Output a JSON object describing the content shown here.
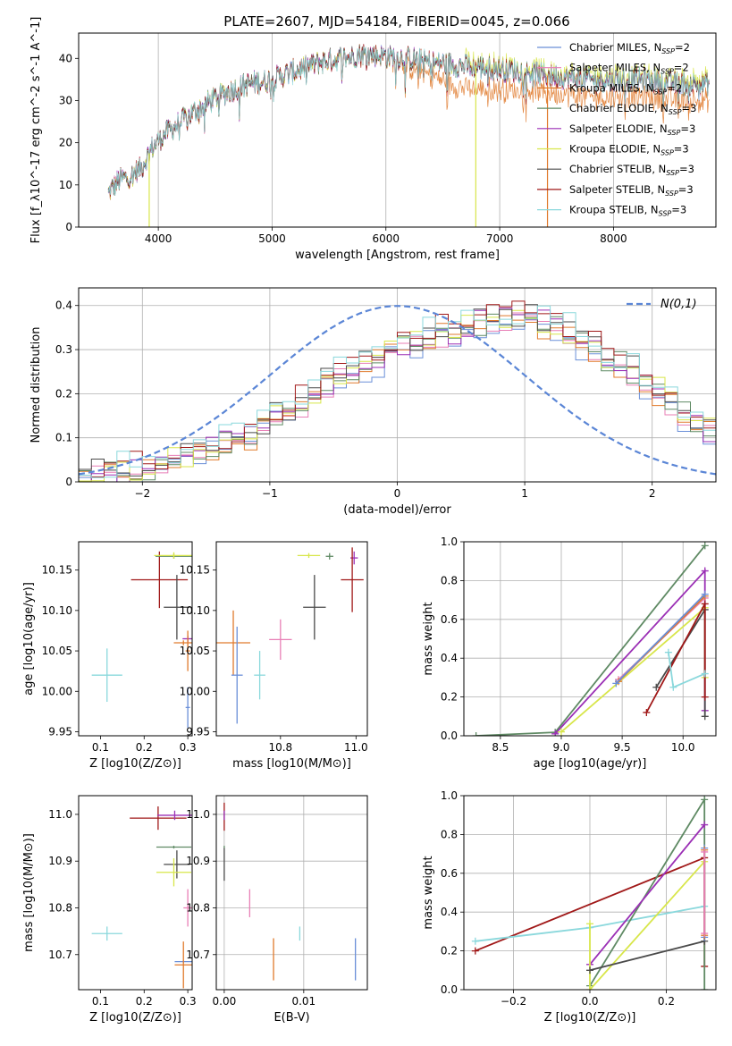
{
  "figure": {
    "title": "PLATE=2607, MJD=54184, FIBERID=0045, z=0.066"
  },
  "colors": {
    "Chabrier MILES": "#6a8fd8",
    "Salpeter MILES": "#e87fb6",
    "Kroupa MILES": "#e07a2c",
    "Chabrier ELODIE": "#5f8a64",
    "Salpeter ELODIE": "#9b2fb5",
    "Kroupa ELODIE": "#d8e64a",
    "Chabrier STELIB": "#4a4a4a",
    "Salpeter STELIB": "#a01818",
    "Kroupa STELIB": "#8ad8dc"
  },
  "chart_data": [
    {
      "id": "spectrum",
      "type": "line",
      "title": "PLATE=2607, MJD=54184, FIBERID=0045, z=0.066",
      "xlabel": "wavelength [Angstrom, rest frame]",
      "ylabel": "Flux [f_λ10^-17 erg cm^-2 s^-1 A^-1]",
      "xlim": [
        3300,
        8900
      ],
      "ylim": [
        0,
        46
      ],
      "xticks": [
        4000,
        5000,
        6000,
        7000,
        8000
      ],
      "yticks": [
        0,
        10,
        20,
        30,
        40
      ],
      "grid": "x-only",
      "legend_position": "right",
      "legend": [
        {
          "label": "Chabrier MILES, N_SSP=2"
        },
        {
          "label": "Salpeter MILES, N_SSP=2"
        },
        {
          "label": "Kroupa MILES, N_SSP=2"
        },
        {
          "label": "Chabrier ELODIE, N_SSP=3"
        },
        {
          "label": "Salpeter ELODIE, N_SSP=3"
        },
        {
          "label": "Kroupa ELODIE, N_SSP=3"
        },
        {
          "label": "Chabrier STELIB, N_SSP=3"
        },
        {
          "label": "Salpeter STELIB, N_SSP=3"
        },
        {
          "label": "Kroupa STELIB, N_SSP=3"
        }
      ],
      "continuum": [
        [
          3560,
          8
        ],
        [
          3650,
          11
        ],
        [
          3750,
          12
        ],
        [
          3850,
          14
        ],
        [
          3950,
          19
        ],
        [
          4050,
          22
        ],
        [
          4200,
          25
        ],
        [
          4400,
          29
        ],
        [
          4600,
          32
        ],
        [
          4800,
          34
        ],
        [
          5000,
          35
        ],
        [
          5200,
          37
        ],
        [
          5400,
          39
        ],
        [
          5600,
          40
        ],
        [
          5800,
          41
        ],
        [
          6000,
          40.5
        ],
        [
          6200,
          40
        ],
        [
          6400,
          39
        ],
        [
          6600,
          38.5
        ],
        [
          6800,
          38
        ],
        [
          7000,
          37.5
        ],
        [
          7200,
          37
        ],
        [
          7400,
          36
        ],
        [
          7600,
          35.5
        ],
        [
          7800,
          35
        ],
        [
          8000,
          35
        ],
        [
          8200,
          35
        ],
        [
          8400,
          34.5
        ],
        [
          8600,
          34
        ],
        [
          8800,
          34
        ]
      ],
      "kroupa_miles_offset": [
        [
          6000,
          0
        ],
        [
          6200,
          -2
        ],
        [
          6400,
          -3
        ],
        [
          6600,
          -5
        ],
        [
          7000,
          -5
        ],
        [
          7400,
          -4
        ]
      ]
    },
    {
      "id": "residuals",
      "type": "line",
      "xlabel": "(data-model)/error",
      "ylabel": "Normed distribution",
      "xlim": [
        -2.5,
        2.5
      ],
      "ylim": [
        0,
        0.44
      ],
      "xticks": [
        -2,
        -1,
        0,
        1,
        2
      ],
      "yticks": [
        0.0,
        0.1,
        0.2,
        0.3,
        0.4
      ],
      "grid": "both",
      "legend_position": "top-right",
      "gaussian_label": "N(0,1)",
      "bin_width": 0.1,
      "hist_centers": [
        -2.45,
        -2.35,
        -2.25,
        -2.15,
        -2.05,
        -1.95,
        -1.85,
        -1.75,
        -1.65,
        -1.55,
        -1.45,
        -1.35,
        -1.25,
        -1.15,
        -1.05,
        -0.95,
        -0.85,
        -0.75,
        -0.65,
        -0.55,
        -0.45,
        -0.35,
        -0.25,
        -0.15,
        -0.05,
        0.05,
        0.15,
        0.25,
        0.35,
        0.45,
        0.55,
        0.65,
        0.75,
        0.85,
        0.95,
        1.05,
        1.15,
        1.25,
        1.35,
        1.45,
        1.55,
        1.65,
        1.75,
        1.85,
        1.95,
        2.05,
        2.15,
        2.25,
        2.35,
        2.45
      ],
      "hist_envelope": [
        0.015,
        0.02,
        0.02,
        0.025,
        0.03,
        0.035,
        0.045,
        0.05,
        0.06,
        0.07,
        0.08,
        0.09,
        0.1,
        0.11,
        0.13,
        0.15,
        0.16,
        0.18,
        0.2,
        0.22,
        0.24,
        0.26,
        0.27,
        0.28,
        0.3,
        0.31,
        0.32,
        0.33,
        0.34,
        0.34,
        0.35,
        0.36,
        0.37,
        0.37,
        0.37,
        0.37,
        0.36,
        0.35,
        0.34,
        0.32,
        0.3,
        0.28,
        0.27,
        0.25,
        0.23,
        0.21,
        0.18,
        0.16,
        0.14,
        0.12
      ]
    },
    {
      "id": "age_vs_Z",
      "type": "scatter",
      "xlabel": "Z [log10(Z/Z⊙)]",
      "ylabel": "age  [log10(age/yr)]",
      "xlim": [
        0.05,
        0.31
      ],
      "ylim": [
        9.945,
        10.185
      ],
      "xticks": [
        0.1,
        0.2,
        0.3
      ],
      "yticks": [
        9.95,
        10.0,
        10.05,
        10.1,
        10.15
      ],
      "grid": "none",
      "points": [
        {
          "series": "Kroupa STELIB",
          "x": 0.115,
          "y": 10.02,
          "ex": 0.035,
          "ey": 0.033
        },
        {
          "series": "Salpeter STELIB",
          "x": 0.235,
          "y": 10.138,
          "ex": 0.065,
          "ey": 0.035
        },
        {
          "series": "Chabrier STELIB",
          "x": 0.275,
          "y": 10.104,
          "ex": 0.03,
          "ey": 0.04
        },
        {
          "series": "Chabrier ELODIE",
          "x": 0.268,
          "y": 10.167,
          "ex": 0.042,
          "ey": 0.003
        },
        {
          "series": "Kroupa ELODIE",
          "x": 0.268,
          "y": 10.168,
          "ex": 0.045,
          "ey": 0.004
        },
        {
          "series": "Salpeter ELODIE",
          "x": 0.3,
          "y": 10.065,
          "ex": 0.012,
          "ey": 0.004
        },
        {
          "series": "Kroupa MILES",
          "x": 0.29,
          "y": 10.06,
          "ex": 0.022,
          "ey": 0.003
        },
        {
          "series": "Chabrier MILES",
          "x": 0.3,
          "y": 9.98,
          "ex": 0.005,
          "ey": 0.025
        },
        {
          "series": "Kroupa MILES",
          "x": 0.3,
          "y": 10.05,
          "ex": 0.005,
          "ey": 0.025
        }
      ]
    },
    {
      "id": "age_vs_mass",
      "type": "scatter",
      "xlabel": "mass [log10(M/M⊙)]",
      "ylabel": "",
      "xlim": [
        10.63,
        11.03
      ],
      "ylim": [
        9.945,
        10.185
      ],
      "xticks": [
        10.8,
        11.0
      ],
      "yticks": [
        9.95,
        10.0,
        10.05,
        10.1,
        10.15
      ],
      "grid": "none",
      "points": [
        {
          "series": "Kroupa MILES",
          "x": 10.675,
          "y": 10.06,
          "ex": 0.045,
          "ey": 0.04
        },
        {
          "series": "Chabrier MILES",
          "x": 10.685,
          "y": 10.02,
          "ex": 0.015,
          "ey": 0.06
        },
        {
          "series": "Kroupa STELIB",
          "x": 10.745,
          "y": 10.02,
          "ex": 0.015,
          "ey": 0.03
        },
        {
          "series": "Salpeter MILES",
          "x": 10.8,
          "y": 10.064,
          "ex": 0.03,
          "ey": 0.025
        },
        {
          "series": "Chabrier STELIB",
          "x": 10.89,
          "y": 10.104,
          "ex": 0.03,
          "ey": 0.04
        },
        {
          "series": "Kroupa ELODIE",
          "x": 10.875,
          "y": 10.168,
          "ex": 0.03,
          "ey": 0.003
        },
        {
          "series": "Chabrier ELODIE",
          "x": 10.93,
          "y": 10.167,
          "ex": 0.01,
          "ey": 0.004
        },
        {
          "series": "Salpeter ELODIE",
          "x": 10.995,
          "y": 10.165,
          "ex": 0.01,
          "ey": 0.008
        },
        {
          "series": "Salpeter STELIB",
          "x": 10.99,
          "y": 10.138,
          "ex": 0.03,
          "ey": 0.04
        }
      ]
    },
    {
      "id": "weight_vs_age",
      "type": "line",
      "xlabel": "age  [log10(age/yr)]",
      "ylabel": "mass weight",
      "xlim": [
        8.2,
        10.27
      ],
      "ylim": [
        0,
        1
      ],
      "xticks": [
        8.5,
        9.0,
        9.5,
        10.0
      ],
      "yticks": [
        0.0,
        0.2,
        0.4,
        0.6,
        0.8,
        1.0
      ],
      "grid": "both",
      "series": [
        {
          "name": "Chabrier ELODIE",
          "x": [
            8.3,
            8.95,
            10.18
          ],
          "y": [
            0.0,
            0.018,
            0.98
          ]
        },
        {
          "name": "Salpeter ELODIE",
          "x": [
            8.95,
            10.18,
            10.18
          ],
          "y": [
            0.01,
            0.85,
            0.13
          ]
        },
        {
          "name": "Kroupa ELODIE",
          "x": [
            9.0,
            10.18,
            10.18
          ],
          "y": [
            0.02,
            0.66,
            0.3
          ]
        },
        {
          "name": "Salpeter MILES",
          "x": [
            9.47,
            10.18
          ],
          "y": [
            0.29,
            0.71
          ]
        },
        {
          "name": "Kroupa MILES",
          "x": [
            9.47,
            10.18
          ],
          "y": [
            0.28,
            0.72
          ]
        },
        {
          "name": "Chabrier MILES",
          "x": [
            9.45,
            10.18
          ],
          "y": [
            0.27,
            0.73
          ]
        },
        {
          "name": "Chabrier STELIB",
          "x": [
            9.78,
            10.18,
            10.18
          ],
          "y": [
            0.25,
            0.65,
            0.1
          ]
        },
        {
          "name": "Salpeter STELIB",
          "x": [
            9.7,
            10.18,
            10.18
          ],
          "y": [
            0.12,
            0.68,
            0.2
          ]
        },
        {
          "name": "Kroupa STELIB",
          "x": [
            9.88,
            9.92,
            10.18
          ],
          "y": [
            0.43,
            0.25,
            0.32
          ]
        }
      ]
    },
    {
      "id": "mass_vs_Z",
      "type": "scatter",
      "xlabel": "Z [log10(Z/Z⊙)]",
      "ylabel": "mass [log10(M/M⊙)]",
      "xlim": [
        0.05,
        0.31
      ],
      "ylim": [
        10.625,
        11.04
      ],
      "xticks": [
        0.1,
        0.2,
        0.3
      ],
      "yticks": [
        10.7,
        10.8,
        10.9,
        11.0
      ],
      "grid": "none",
      "points": [
        {
          "series": "Kroupa STELIB",
          "x": 0.115,
          "y": 10.745,
          "ex": 0.035,
          "ey": 0.015
        },
        {
          "series": "Salpeter STELIB",
          "x": 0.232,
          "y": 10.992,
          "ex": 0.065,
          "ey": 0.025
        },
        {
          "series": "Salpeter ELODIE",
          "x": 0.27,
          "y": 10.998,
          "ex": 0.04,
          "ey": 0.01
        },
        {
          "series": "Chabrier STELIB",
          "x": 0.275,
          "y": 10.893,
          "ex": 0.03,
          "ey": 0.03
        },
        {
          "series": "Chabrier ELODIE",
          "x": 0.268,
          "y": 10.93,
          "ex": 0.04,
          "ey": 0.003
        },
        {
          "series": "Kroupa ELODIE",
          "x": 0.268,
          "y": 10.876,
          "ex": 0.04,
          "ey": 0.03
        },
        {
          "series": "Salpeter MILES",
          "x": 0.3,
          "y": 10.8,
          "ex": 0.01,
          "ey": 0.04
        },
        {
          "series": "Chabrier MILES",
          "x": 0.29,
          "y": 10.685,
          "ex": 0.02,
          "ey": 0.003
        },
        {
          "series": "Kroupa MILES",
          "x": 0.29,
          "y": 10.678,
          "ex": 0.02,
          "ey": 0.05
        }
      ]
    },
    {
      "id": "mass_vs_EBV",
      "type": "scatter",
      "xlabel": "E(B-V)",
      "ylabel": "",
      "xlim": [
        -0.001,
        0.018
      ],
      "ylim": [
        10.625,
        11.04
      ],
      "xticks": [
        0.0,
        0.01
      ],
      "yticks": [
        10.7,
        10.8,
        10.9,
        11.0
      ],
      "grid": "both",
      "points": [
        {
          "series": "Salpeter STELIB",
          "x": 0.0,
          "y": 10.995,
          "ex": 0,
          "ey": 0.03
        },
        {
          "series": "Salpeter ELODIE",
          "x": 0.0,
          "y": 10.998,
          "ex": 0,
          "ey": 0.01
        },
        {
          "series": "Chabrier ELODIE",
          "x": 0.0,
          "y": 10.93,
          "ex": 0,
          "ey": 0.003
        },
        {
          "series": "Chabrier STELIB",
          "x": 0.0,
          "y": 10.893,
          "ex": 0,
          "ey": 0.035
        },
        {
          "series": "Salpeter MILES",
          "x": 0.0032,
          "y": 10.81,
          "ex": 0,
          "ey": 0.03
        },
        {
          "series": "Kroupa MILES",
          "x": 0.0062,
          "y": 10.69,
          "ex": 0,
          "ey": 0.045
        },
        {
          "series": "Kroupa STELIB",
          "x": 0.0095,
          "y": 10.745,
          "ex": 0,
          "ey": 0.015
        },
        {
          "series": "Chabrier MILES",
          "x": 0.0165,
          "y": 10.69,
          "ex": 0,
          "ey": 0.045
        }
      ]
    },
    {
      "id": "weight_vs_Z",
      "type": "line",
      "xlabel": "Z [log10(Z/Z⊙)]",
      "ylabel": "mass weight",
      "xlim": [
        -0.33,
        0.33
      ],
      "ylim": [
        0,
        1
      ],
      "xticks": [
        -0.2,
        0.0,
        0.2
      ],
      "yticks": [
        0.0,
        0.2,
        0.4,
        0.6,
        0.8,
        1.0
      ],
      "grid": "both",
      "series": [
        {
          "name": "Salpeter STELIB",
          "x": [
            -0.3,
            0.3,
            0.3
          ],
          "y": [
            0.2,
            0.68,
            0.12
          ]
        },
        {
          "name": "Kroupa STELIB",
          "x": [
            -0.3,
            0.0,
            0.3
          ],
          "y": [
            0.25,
            0.32,
            0.43
          ]
        },
        {
          "name": "Chabrier ELODIE",
          "x": [
            0.0,
            0.3,
            0.3
          ],
          "y": [
            0.02,
            0.98,
            0.0
          ]
        },
        {
          "name": "Salpeter ELODIE",
          "x": [
            0.0,
            0.3
          ],
          "y": [
            0.13,
            0.85
          ]
        },
        {
          "name": "Kroupa ELODIE",
          "x": [
            0.0,
            0.0,
            0.3
          ],
          "y": [
            0.34,
            0.0,
            0.66
          ]
        },
        {
          "name": "Chabrier STELIB",
          "x": [
            0.0,
            0.3
          ],
          "y": [
            0.1,
            0.25
          ]
        },
        {
          "name": "Chabrier MILES",
          "x": [
            0.3,
            0.3
          ],
          "y": [
            0.27,
            0.73
          ]
        },
        {
          "name": "Kroupa MILES",
          "x": [
            0.3,
            0.3
          ],
          "y": [
            0.28,
            0.72
          ]
        },
        {
          "name": "Salpeter MILES",
          "x": [
            0.3,
            0.3
          ],
          "y": [
            0.29,
            0.71
          ]
        }
      ]
    }
  ]
}
